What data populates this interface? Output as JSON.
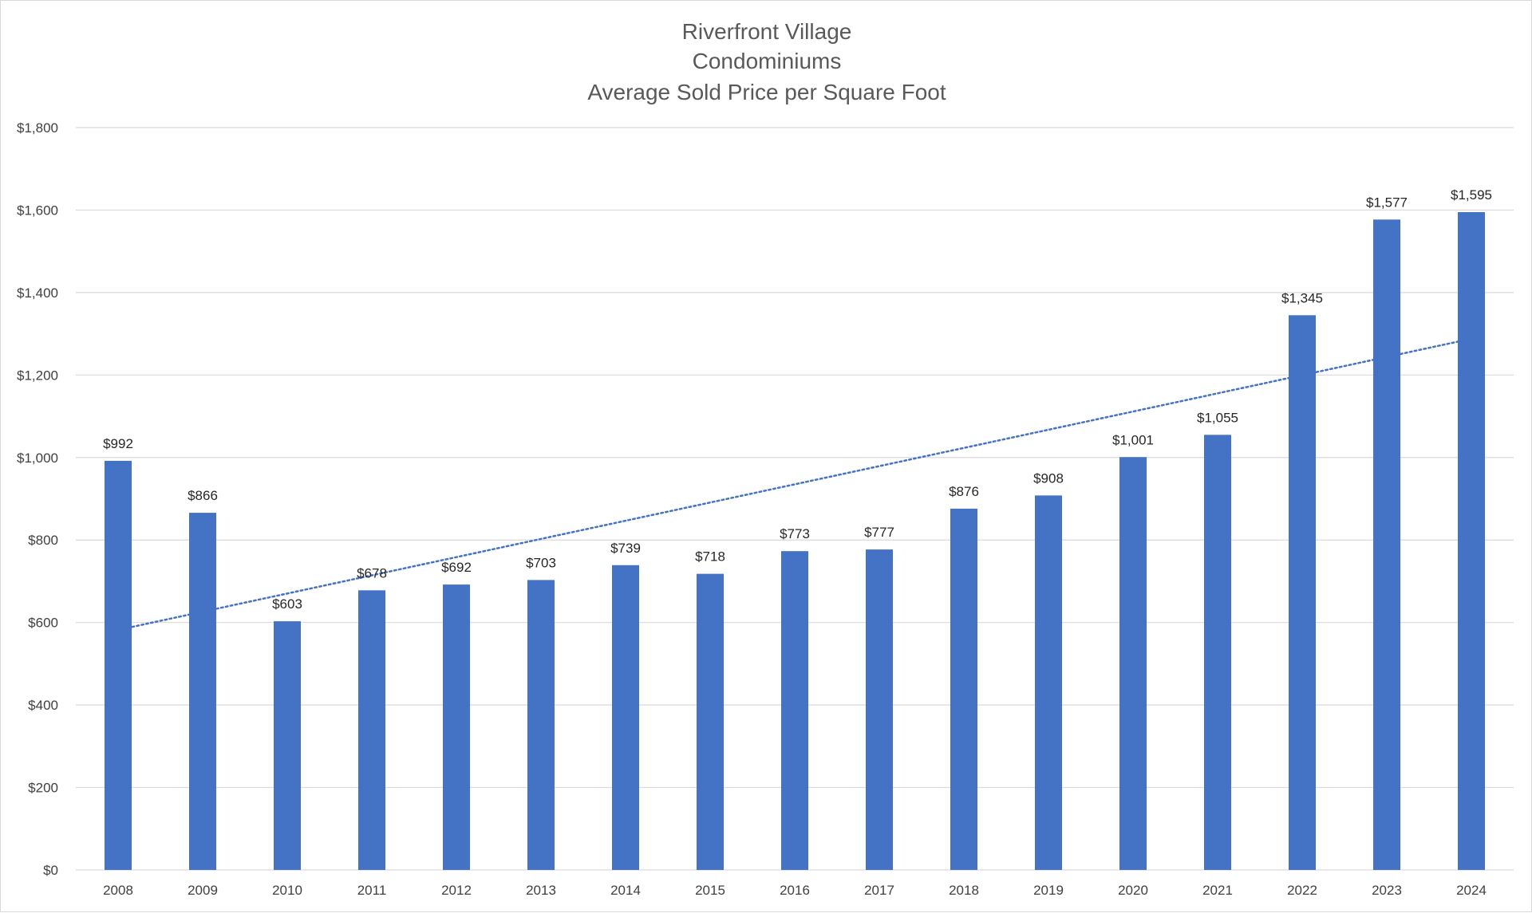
{
  "chart_data": {
    "type": "bar",
    "title_lines": [
      "Riverfront Village",
      "Condominiums",
      "Average Sold Price per Square Foot"
    ],
    "categories": [
      "2008",
      "2009",
      "2010",
      "2011",
      "2012",
      "2013",
      "2014",
      "2015",
      "2016",
      "2017",
      "2018",
      "2019",
      "2020",
      "2021",
      "2022",
      "2023",
      "2024"
    ],
    "values": [
      992,
      866,
      603,
      678,
      692,
      703,
      739,
      718,
      773,
      777,
      876,
      908,
      1001,
      1055,
      1345,
      1577,
      1595
    ],
    "data_labels": [
      "$992",
      "$866",
      "$603",
      "$678",
      "$692",
      "$703",
      "$739",
      "$718",
      "$773",
      "$777",
      "$876",
      "$908",
      "$1,001",
      "$1,055",
      "$1,345",
      "$1,577",
      "$1,595"
    ],
    "y_ticks": [
      0,
      200,
      400,
      600,
      800,
      1000,
      1200,
      1400,
      1600,
      1800
    ],
    "y_tick_labels": [
      "$0",
      "$200",
      "$400",
      "$600",
      "$800",
      "$1,000",
      "$1,200",
      "$1,400",
      "$1,600",
      "$1,800"
    ],
    "ylim": [
      0,
      1800
    ],
    "xlabel": "",
    "ylabel": "",
    "grid": true,
    "legend": "none",
    "trendline": {
      "type": "linear",
      "style": "dotted",
      "start": 582,
      "end": 1288
    },
    "colors": {
      "bar": "#4472c4",
      "trendline": "#4472c4",
      "gridline": "#d9d9d9"
    }
  }
}
